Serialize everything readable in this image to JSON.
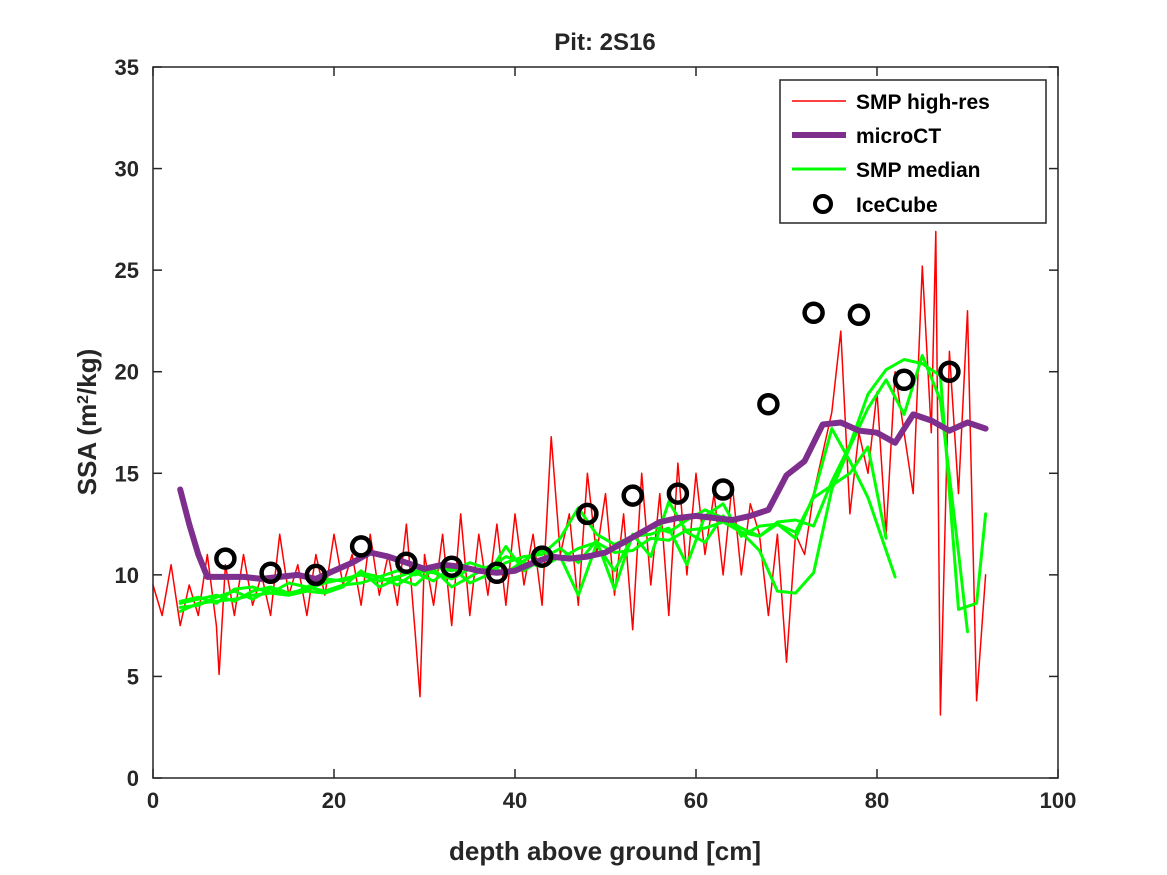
{
  "chart_data": {
    "type": "line",
    "title": "Pit: 2S16",
    "xlabel": "depth above ground [cm]",
    "ylabel_main": "SSA (m",
    "ylabel_sup": "2",
    "ylabel_end": "/kg)",
    "xlim": [
      0,
      100
    ],
    "ylim": [
      0,
      35
    ],
    "xticks": [
      0,
      20,
      40,
      60,
      80,
      100
    ],
    "yticks": [
      0,
      5,
      10,
      15,
      20,
      25,
      30,
      35
    ],
    "grid": false,
    "legend_position": "top-right",
    "series": [
      {
        "name": "SMP high-res",
        "kind": "line",
        "color": "#ff0000",
        "x": [
          0,
          1,
          2,
          3,
          4,
          5,
          6,
          7,
          7.3,
          8,
          9,
          10,
          11,
          12,
          13,
          14,
          15,
          16,
          17,
          18,
          19,
          20,
          21,
          22,
          23,
          24,
          25,
          26,
          27,
          28,
          29,
          29.5,
          30,
          31,
          32,
          33,
          34,
          35,
          36,
          37,
          38,
          39,
          40,
          41,
          42,
          43,
          44,
          45,
          46,
          47,
          48,
          49,
          50,
          51,
          52,
          53,
          54,
          55,
          56,
          57,
          58,
          59,
          60,
          61,
          62,
          63,
          64,
          65,
          66,
          67,
          68,
          69,
          70,
          71,
          72,
          73,
          74,
          75,
          76,
          77,
          78,
          79,
          80,
          81,
          82,
          83,
          84,
          85,
          86,
          86.5,
          87,
          88,
          89,
          90,
          91,
          92
        ],
        "y": [
          9.5,
          8,
          10.5,
          7.5,
          9.5,
          8,
          11,
          7.5,
          5.1,
          10.5,
          8,
          11,
          8.5,
          10,
          8,
          12,
          9,
          10.5,
          8,
          11,
          9,
          12,
          9.5,
          11,
          8.5,
          12,
          9,
          11,
          8.5,
          12.5,
          7,
          4,
          11,
          8.5,
          12,
          7.5,
          13,
          8,
          12,
          9,
          12.5,
          8.5,
          13,
          9.5,
          12,
          8.5,
          16.8,
          11,
          13,
          8.5,
          15,
          11,
          14,
          9,
          13,
          7.3,
          15,
          9.5,
          14,
          8,
          15.5,
          10,
          15,
          11,
          14,
          10,
          14.5,
          10,
          13.5,
          12,
          8,
          12,
          5.7,
          12,
          11,
          14,
          16,
          18,
          22,
          13,
          17,
          15,
          19,
          12,
          20,
          17,
          14,
          25.2,
          17,
          26.9,
          3.1,
          21,
          14,
          23,
          3.8,
          10
        ]
      },
      {
        "name": "microCT",
        "kind": "line",
        "color": "#7e2f8e",
        "x": [
          3,
          4,
          5,
          6,
          8,
          10,
          12,
          14,
          16,
          18,
          20,
          22,
          24,
          26,
          28,
          30,
          32,
          34,
          36,
          38,
          40,
          42,
          44,
          46,
          48,
          50,
          52,
          54,
          56,
          58,
          60,
          62,
          64,
          66,
          68,
          70,
          72,
          74,
          76,
          78,
          80,
          82,
          84,
          86,
          88,
          90,
          92
        ],
        "y": [
          14.2,
          12.5,
          11,
          9.9,
          9.9,
          9.9,
          9.8,
          9.9,
          10,
          9.8,
          10.2,
          10.6,
          11.1,
          10.9,
          10.6,
          10.3,
          10.5,
          10.4,
          10.2,
          10.1,
          10.2,
          10.6,
          10.9,
          10.8,
          10.9,
          11.1,
          11.6,
          12.1,
          12.6,
          12.8,
          12.9,
          12.8,
          12.7,
          12.9,
          13.2,
          14.9,
          15.6,
          17.4,
          17.5,
          17.1,
          17,
          16.5,
          17.9,
          17.6,
          17.1,
          17.5,
          17.2
        ]
      },
      {
        "name": "SMP median",
        "kind": "line",
        "color": "#00ff00",
        "x": [
          3,
          5,
          7,
          9,
          11,
          13,
          15,
          17,
          19,
          21,
          23,
          25,
          27,
          29,
          31,
          33,
          35,
          37,
          39,
          41,
          43,
          45,
          47,
          49,
          51,
          53,
          55,
          57,
          59,
          61,
          63,
          65,
          67,
          69,
          71,
          73,
          75,
          77,
          79,
          81,
          83,
          85,
          87,
          89,
          91,
          92
        ],
        "y": [
          8.2,
          8.6,
          8.7,
          8.8,
          9,
          9.1,
          9,
          9.2,
          9.1,
          9.4,
          10.2,
          9.4,
          9.8,
          9.5,
          10.3,
          9.4,
          9.9,
          10.4,
          10.1,
          10.7,
          11.2,
          10.8,
          11.3,
          11.6,
          11.1,
          11.2,
          11.8,
          11.7,
          12.2,
          12.3,
          12.6,
          12.1,
          11.9,
          12.6,
          12.7,
          12.4,
          14.6,
          16.4,
          18.9,
          20.1,
          20.6,
          20.4,
          19.8,
          8.3,
          8.6,
          13
        ]
      },
      {
        "name": "",
        "kind": "line",
        "color": "#00ff00",
        "x": [
          3,
          5,
          7,
          9,
          11,
          13,
          15,
          17,
          19,
          21,
          23,
          25,
          27,
          29,
          31,
          33,
          35,
          37,
          39,
          41,
          43,
          45,
          47,
          49,
          51,
          53,
          55,
          57,
          59,
          61,
          63,
          65,
          67,
          69,
          71,
          73,
          75,
          77,
          79,
          81,
          82
        ],
        "y": [
          8.6,
          8.8,
          9,
          8.7,
          9.2,
          9.4,
          9.1,
          9.3,
          9.6,
          9.8,
          10,
          9.7,
          9.9,
          10.2,
          10.1,
          9.8,
          10.3,
          10.1,
          10.6,
          10.9,
          11,
          11.8,
          13.3,
          12,
          11.5,
          11.9,
          12.4,
          12.1,
          12.7,
          13.2,
          12.8,
          12.3,
          11.9,
          12.5,
          11.8,
          13.9,
          17.2,
          15.6,
          13.8,
          11.2,
          9.9
        ]
      },
      {
        "name": "",
        "kind": "line",
        "color": "#00ff00",
        "x": [
          3,
          5,
          7,
          9,
          11,
          13,
          15,
          17,
          19,
          21,
          23,
          25,
          27,
          29,
          31,
          33,
          35,
          37,
          39,
          41,
          43,
          45,
          47,
          49,
          51,
          53,
          55,
          57,
          59,
          61,
          63,
          65,
          67,
          69,
          71,
          73,
          75,
          77,
          79,
          81,
          83,
          85,
          87,
          89,
          90
        ],
        "y": [
          8.4,
          8.5,
          8.9,
          9.2,
          8.8,
          9.3,
          9,
          9.4,
          9.2,
          9.5,
          9.6,
          9.9,
          9.5,
          10.1,
          9.7,
          10.4,
          9.6,
          10,
          11.4,
          10.2,
          10.8,
          11.3,
          10.6,
          11.7,
          9.3,
          12,
          10.9,
          13.6,
          12.1,
          11.6,
          12.9,
          12.1,
          11.2,
          9.2,
          9.1,
          10.1,
          14.2,
          16.3,
          18.2,
          19.6,
          17.9,
          20.8,
          18.6,
          11.1,
          7.2
        ]
      },
      {
        "name": "",
        "kind": "line",
        "color": "#00ff00",
        "x": [
          3,
          5,
          7,
          9,
          11,
          13,
          15,
          17,
          19,
          21,
          23,
          25,
          27,
          29,
          31,
          33,
          35,
          37,
          39,
          41,
          43,
          45,
          47,
          49,
          51,
          53,
          55,
          57,
          59,
          61,
          63,
          65,
          67,
          69,
          71,
          73,
          75,
          77,
          79,
          81
        ],
        "y": [
          8.7,
          8.9,
          8.6,
          9.3,
          9.4,
          9.1,
          9.6,
          9.4,
          9.8,
          9.7,
          10.1,
          9.9,
          10.2,
          10,
          10.4,
          10.2,
          10.6,
          10.3,
          10.9,
          10.6,
          10.4,
          10.9,
          9,
          11.5,
          10.2,
          11.9,
          12,
          12.3,
          10.5,
          12.9,
          13.5,
          11.9,
          12.4,
          12.5,
          12.1,
          13.8,
          14.4,
          15,
          16.3,
          11.8
        ]
      },
      {
        "name": "IceCube",
        "kind": "marker",
        "color": "#000000",
        "x": [
          8,
          13,
          18,
          23,
          28,
          33,
          38,
          43,
          48,
          53,
          58,
          63,
          68,
          73,
          78,
          83,
          88
        ],
        "y": [
          10.8,
          10.1,
          10,
          11.4,
          10.6,
          10.4,
          10.1,
          10.9,
          13,
          13.9,
          14,
          14.2,
          18.4,
          22.9,
          22.8,
          19.6,
          20
        ]
      }
    ]
  }
}
